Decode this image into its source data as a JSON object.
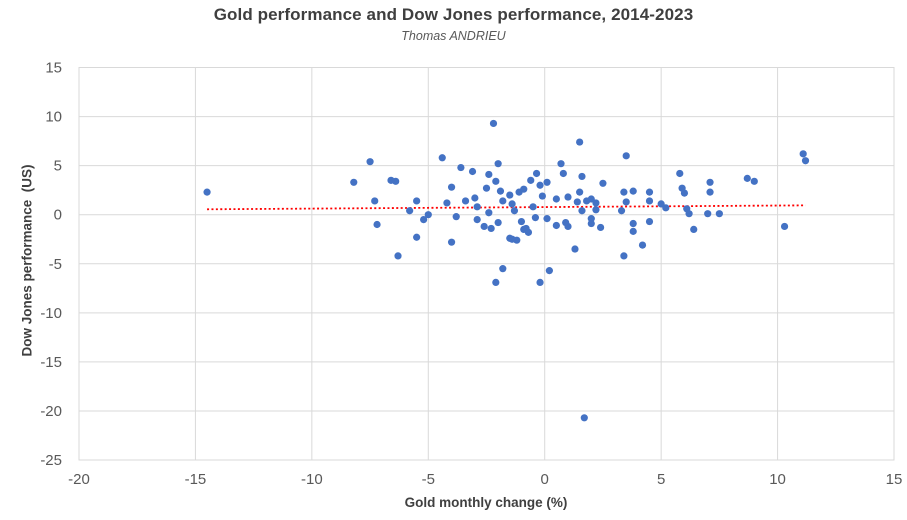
{
  "header": {
    "title": "Gold performance and Dow Jones performance, 2014-2023",
    "subtitle": "Thomas ANDRIEU"
  },
  "chart_data": {
    "type": "scatter",
    "title": "Gold performance and Dow Jones performance, 2014-2023",
    "subtitle": "Thomas ANDRIEU",
    "xlabel": "Gold monthly change (%)",
    "ylabel": "Dow Jones performance  (US)",
    "xlim": [
      -20,
      15
    ],
    "ylim": [
      -25,
      15
    ],
    "xticks": [
      -20,
      -15,
      -10,
      -5,
      0,
      5,
      10,
      15
    ],
    "yticks": [
      15,
      10,
      5,
      0,
      -5,
      -10,
      -15,
      -20,
      -25
    ],
    "grid": true,
    "legend": "none",
    "point_color": "#4472C4",
    "gridline_color": "#D9D9D9",
    "trendline": {
      "style": "dotted",
      "color": "#FF0000",
      "x1": -14.5,
      "y1": 0.55,
      "x2": 11.2,
      "y2": 0.95
    },
    "points": [
      [
        -14.5,
        2.3
      ],
      [
        -8.2,
        3.3
      ],
      [
        -7.5,
        5.4
      ],
      [
        -7.3,
        1.4
      ],
      [
        -7.2,
        -1.0
      ],
      [
        -6.6,
        3.5
      ],
      [
        -6.4,
        3.4
      ],
      [
        -6.3,
        -4.2
      ],
      [
        -5.8,
        0.4
      ],
      [
        -5.5,
        1.4
      ],
      [
        -5.5,
        -2.3
      ],
      [
        -5.2,
        -0.5
      ],
      [
        -5.0,
        0.0
      ],
      [
        -4.4,
        5.8
      ],
      [
        -4.2,
        1.2
      ],
      [
        -4.0,
        2.8
      ],
      [
        -4.0,
        -2.8
      ],
      [
        -3.8,
        -0.2
      ],
      [
        -3.6,
        4.8
      ],
      [
        -3.4,
        1.4
      ],
      [
        -3.1,
        4.4
      ],
      [
        -3.0,
        1.7
      ],
      [
        -2.9,
        0.8
      ],
      [
        -2.9,
        -0.5
      ],
      [
        -2.6,
        -1.2
      ],
      [
        -2.5,
        2.7
      ],
      [
        -2.4,
        4.1
      ],
      [
        -2.4,
        0.2
      ],
      [
        -2.3,
        -1.4
      ],
      [
        -2.2,
        9.3
      ],
      [
        -2.1,
        3.4
      ],
      [
        -2.1,
        -6.9
      ],
      [
        -2.0,
        5.2
      ],
      [
        -2.0,
        -0.8
      ],
      [
        -1.9,
        2.4
      ],
      [
        -1.8,
        -5.5
      ],
      [
        -1.8,
        1.4
      ],
      [
        -1.5,
        2.0
      ],
      [
        -1.5,
        -2.4
      ],
      [
        -1.4,
        1.1
      ],
      [
        -1.4,
        -2.5
      ],
      [
        -1.3,
        0.4
      ],
      [
        -1.2,
        -2.6
      ],
      [
        -1.1,
        2.3
      ],
      [
        -1.0,
        -0.7
      ],
      [
        -0.9,
        2.6
      ],
      [
        -0.9,
        -1.5
      ],
      [
        -0.8,
        -1.4
      ],
      [
        -0.7,
        -1.8
      ],
      [
        -0.6,
        3.5
      ],
      [
        -0.5,
        0.8
      ],
      [
        -0.4,
        -0.3
      ],
      [
        -0.35,
        4.2
      ],
      [
        -0.2,
        3.0
      ],
      [
        -0.2,
        -6.9
      ],
      [
        -0.1,
        1.9
      ],
      [
        0.1,
        3.3
      ],
      [
        0.1,
        -0.4
      ],
      [
        0.2,
        -5.7
      ],
      [
        0.5,
        1.6
      ],
      [
        0.5,
        -1.1
      ],
      [
        0.7,
        5.2
      ],
      [
        0.8,
        4.2
      ],
      [
        0.9,
        -0.8
      ],
      [
        1.0,
        1.8
      ],
      [
        1.0,
        -1.2
      ],
      [
        1.3,
        -3.5
      ],
      [
        1.4,
        1.3
      ],
      [
        1.5,
        7.4
      ],
      [
        1.5,
        2.3
      ],
      [
        1.6,
        3.9
      ],
      [
        1.6,
        0.4
      ],
      [
        1.7,
        -20.7
      ],
      [
        1.8,
        1.4
      ],
      [
        2.0,
        1.6
      ],
      [
        2.0,
        -0.4
      ],
      [
        2.0,
        -0.9
      ],
      [
        2.2,
        1.2
      ],
      [
        2.2,
        0.5
      ],
      [
        2.4,
        -1.3
      ],
      [
        2.5,
        3.2
      ],
      [
        3.3,
        0.4
      ],
      [
        3.4,
        2.3
      ],
      [
        3.4,
        -4.2
      ],
      [
        3.5,
        6.0
      ],
      [
        3.5,
        1.3
      ],
      [
        3.8,
        2.4
      ],
      [
        3.8,
        -0.9
      ],
      [
        3.8,
        -1.7
      ],
      [
        4.2,
        -3.1
      ],
      [
        4.5,
        2.3
      ],
      [
        4.5,
        1.4
      ],
      [
        4.5,
        -0.7
      ],
      [
        5.0,
        1.1
      ],
      [
        5.2,
        0.7
      ],
      [
        5.8,
        4.2
      ],
      [
        5.9,
        2.7
      ],
      [
        6.0,
        2.2
      ],
      [
        6.1,
        0.6
      ],
      [
        6.2,
        0.1
      ],
      [
        6.4,
        -1.5
      ],
      [
        7.0,
        0.1
      ],
      [
        7.1,
        3.3
      ],
      [
        7.1,
        2.3
      ],
      [
        7.5,
        0.1
      ],
      [
        8.7,
        3.7
      ],
      [
        9.0,
        3.4
      ],
      [
        10.3,
        -1.2
      ],
      [
        11.1,
        6.2
      ],
      [
        11.2,
        5.5
      ]
    ]
  }
}
